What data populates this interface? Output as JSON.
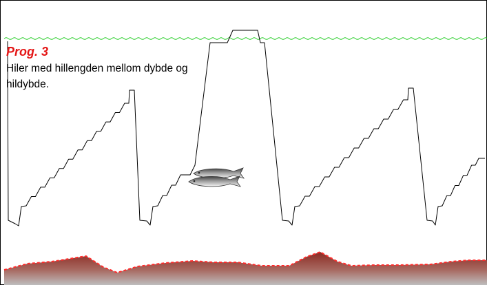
{
  "caption": {
    "program": "Prog. 3",
    "description": "Hiler med hillengden mellom dybde og hildybde."
  },
  "colors": {
    "frame": "#000000",
    "surface_wave": "#22cc22",
    "depth_line": "#000000",
    "program_label": "#e41616",
    "seabed_top": "#8b2a22",
    "seabed_bottom": "#b9b9b9",
    "seabed_outline": "#ff2b2b"
  },
  "icons": [
    "fish-school-icon"
  ]
}
